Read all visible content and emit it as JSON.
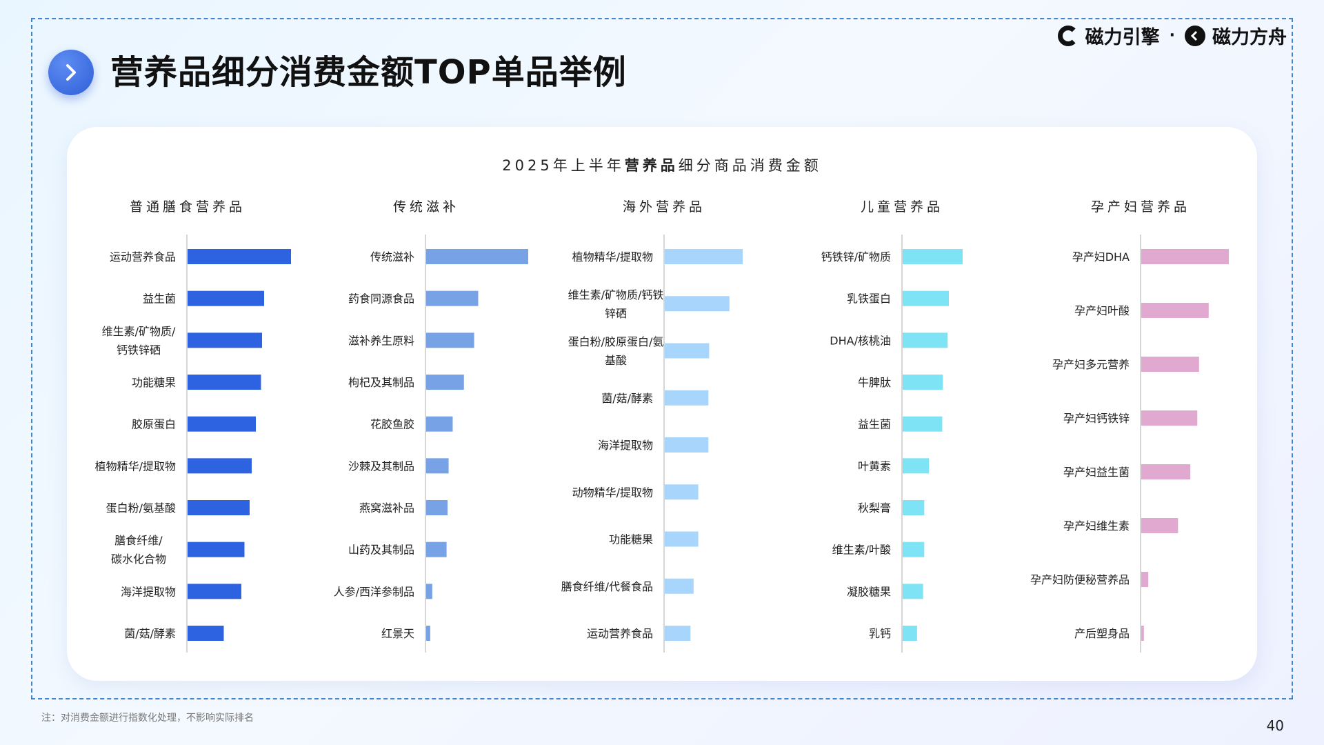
{
  "header": {
    "title": "营养品细分消费金额TOP单品举例",
    "logo_left": "磁力引擎",
    "logo_sep": "·",
    "logo_right": "磁力方舟"
  },
  "footer": {
    "note": "注：对消费金额进行指数化处理，不影响实际排名",
    "page_number": "40"
  },
  "chart_data": {
    "type": "bar",
    "orientation": "horizontal",
    "title_prefix": "2025年上半年",
    "title_bold": "营养品",
    "title_suffix": "细分商品消费金额",
    "panels": [
      {
        "name": "普通膳食营养品",
        "color": "#2d62e0",
        "categories": [
          "运动营养食品",
          "益生菌",
          "维生素/矿物质/钙铁锌硒",
          "功能糖果",
          "胶原蛋白",
          "植物精华/提取物",
          "蛋白粉/氨基酸",
          "膳食纤维/碳水化合物",
          "海洋提取物",
          "菌/菇/酵素"
        ],
        "label_lines": [
          [
            "运动营养食品"
          ],
          [
            "益生菌"
          ],
          [
            "维生素/矿物质/",
            "钙铁锌硒"
          ],
          [
            "功能糖果"
          ],
          [
            "胶原蛋白"
          ],
          [
            "植物精华/提取物"
          ],
          [
            "蛋白粉/氨基酸"
          ],
          [
            "膳食纤维/",
            "碳水化合物"
          ],
          [
            "海洋提取物"
          ],
          [
            "菌/菇/酵素"
          ]
        ],
        "values": [
          100,
          74,
          72,
          71,
          66,
          62,
          60,
          55,
          52,
          35
        ]
      },
      {
        "name": "传统滋补",
        "color": "#78a2e6",
        "categories": [
          "传统滋补",
          "药食同源食品",
          "滋补养生原料",
          "枸杞及其制品",
          "花胶鱼胶",
          "沙棘及其制品",
          "燕窝滋补品",
          "山药及其制品",
          "人参/西洋参制品",
          "红景天"
        ],
        "label_lines": [
          [
            "传统滋补"
          ],
          [
            "药食同源食品"
          ],
          [
            "滋补养生原料"
          ],
          [
            "枸杞及其制品"
          ],
          [
            "花胶鱼胶"
          ],
          [
            "沙棘及其制品"
          ],
          [
            "燕窝滋补品"
          ],
          [
            "山药及其制品"
          ],
          [
            "人参/西洋参制品"
          ],
          [
            "红景天"
          ]
        ],
        "values": [
          100,
          51,
          47,
          37,
          26,
          22,
          21,
          20,
          6,
          4
        ]
      },
      {
        "name": "海外营养品",
        "color": "#a8d5fb",
        "categories": [
          "植物精华/提取物",
          "维生素/矿物质/钙铁锌硒",
          "蛋白粉/胶原蛋白/氨基酸",
          "菌/菇/酵素",
          "海洋提取物",
          "动物精华/提取物",
          "功能糖果",
          "膳食纤维/代餐食品",
          "运动营养食品"
        ],
        "label_lines": [
          [
            "植物精华/提取物"
          ],
          [
            "维生素/矿物质/钙铁",
            "锌硒"
          ],
          [
            "蛋白粉/胶原蛋白/氨",
            "基酸"
          ],
          [
            "菌/菇/酵素"
          ],
          [
            "海洋提取物"
          ],
          [
            "动物精华/提取物"
          ],
          [
            "功能糖果"
          ],
          [
            "膳食纤维/代餐食品"
          ],
          [
            "运动营养食品"
          ]
        ],
        "values": [
          100,
          83,
          57,
          56,
          56,
          43,
          43,
          37,
          33
        ]
      },
      {
        "name": "儿童营养品",
        "color": "#7ee3f5",
        "categories": [
          "钙铁锌/矿物质",
          "乳铁蛋白",
          "DHA/核桃油",
          "牛脾肽",
          "益生菌",
          "叶黄素",
          "秋梨膏",
          "维生素/叶酸",
          "凝胶糖果",
          "乳钙"
        ],
        "label_lines": [
          [
            "钙铁锌/矿物质"
          ],
          [
            "乳铁蛋白"
          ],
          [
            "DHA/核桃油"
          ],
          [
            "牛脾肽"
          ],
          [
            "益生菌"
          ],
          [
            "叶黄素"
          ],
          [
            "秋梨膏"
          ],
          [
            "维生素/叶酸"
          ],
          [
            "凝胶糖果"
          ],
          [
            "乳钙"
          ]
        ],
        "values": [
          100,
          77,
          75,
          67,
          66,
          44,
          36,
          36,
          34,
          24
        ]
      },
      {
        "name": "孕产妇营养品",
        "color": "#e1a9cf",
        "categories": [
          "孕产妇DHA",
          "孕产妇叶酸",
          "孕产妇多元营养",
          "孕产妇钙铁锌",
          "孕产妇益生菌",
          "孕产妇维生素",
          "孕产妇防便秘营养品",
          "产后塑身品"
        ],
        "label_lines": [
          [
            "孕产妇DHA"
          ],
          [
            "孕产妇叶酸"
          ],
          [
            "孕产妇多元营养"
          ],
          [
            "孕产妇钙铁锌"
          ],
          [
            "孕产妇益生菌"
          ],
          [
            "孕产妇维生素"
          ],
          [
            "孕产妇防便秘营养品"
          ],
          [
            "产后塑身品"
          ]
        ],
        "values": [
          100,
          77,
          66,
          64,
          56,
          42,
          8,
          3
        ]
      }
    ]
  }
}
